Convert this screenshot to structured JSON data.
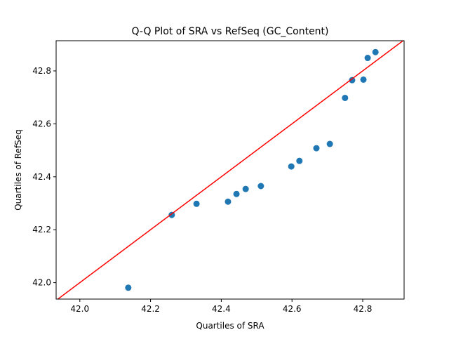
{
  "chart_data": {
    "type": "scatter",
    "title": "Q-Q Plot of SRA vs RefSeq (GC_Content)",
    "x_label": "Quartiles of SRA",
    "y_label": "Quartiles of RefSeq",
    "x": [
      42.137,
      42.26,
      42.33,
      42.419,
      42.443,
      42.469,
      42.512,
      42.598,
      42.621,
      42.669,
      42.707,
      42.75,
      42.77,
      42.802,
      42.814,
      42.836
    ],
    "values": [
      41.981,
      42.256,
      42.298,
      42.306,
      42.335,
      42.354,
      42.365,
      42.439,
      42.46,
      42.508,
      42.524,
      42.698,
      42.765,
      42.767,
      42.849,
      42.871
    ],
    "color": "#1f77b4",
    "line_color": "red",
    "xlim": [
      41.933,
      42.917
    ],
    "ylim": [
      41.938,
      42.914
    ],
    "xticks": [
      {
        "value": 42,
        "label": "42.0"
      },
      42.2,
      42.4,
      42.6,
      42.8
    ],
    "yticks": [
      {
        "value": 42,
        "label": "42.0"
      },
      42.2,
      42.4,
      42.6,
      42.8
    ]
  }
}
